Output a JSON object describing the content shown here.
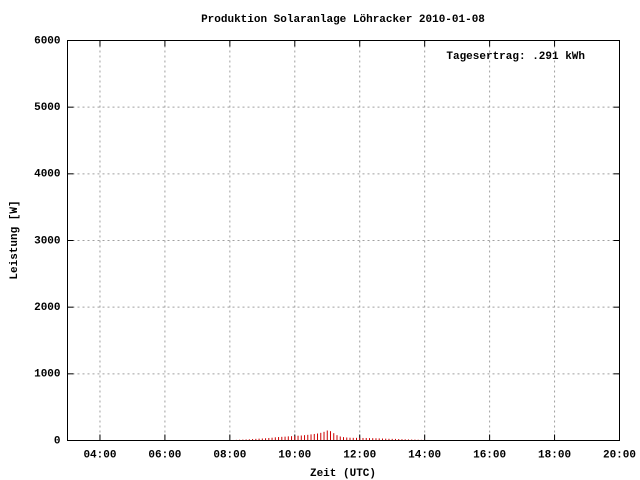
{
  "chart_data": {
    "type": "impulse",
    "title": "Produktion Solaranlage Löhracker 2010-01-08",
    "annotation": "Tagesertrag: .291 kWh",
    "x_label": "Zeit (UTC)",
    "y_label": "Leistung [W]",
    "color": "#cc0000",
    "grid": true,
    "xlim": [
      3,
      20
    ],
    "xticks": [
      {
        "value": 4,
        "label": "04:00"
      },
      {
        "value": 6,
        "label": "06:00"
      },
      {
        "value": 8,
        "label": "08:00"
      },
      {
        "value": 10,
        "label": "10:00"
      },
      {
        "value": 12,
        "label": "12:00"
      },
      {
        "value": 14,
        "label": "14:00"
      },
      {
        "value": 16,
        "label": "16:00"
      },
      {
        "value": 18,
        "label": "18:00"
      },
      {
        "value": 20,
        "label": "20:00"
      }
    ],
    "ylim": [
      0,
      6000
    ],
    "yticks": [
      0,
      1000,
      2000,
      3000,
      4000,
      5000,
      6000
    ],
    "x": [
      8.0,
      8.1,
      8.2,
      8.3,
      8.4,
      8.5,
      8.6,
      8.7,
      8.8,
      8.9,
      9.0,
      9.1,
      9.2,
      9.3,
      9.4,
      9.5,
      9.6,
      9.7,
      9.8,
      9.9,
      10.0,
      10.1,
      10.2,
      10.3,
      10.4,
      10.5,
      10.6,
      10.7,
      10.8,
      10.9,
      11.0,
      11.1,
      11.2,
      11.3,
      11.4,
      11.5,
      11.6,
      11.7,
      11.8,
      11.9,
      12.0,
      12.1,
      12.2,
      12.3,
      12.4,
      12.5,
      12.6,
      12.7,
      12.8,
      12.9,
      13.0,
      13.1,
      13.2,
      13.3,
      13.4,
      13.5,
      13.6,
      13.7,
      13.8,
      13.9,
      14.0,
      14.1,
      14.2,
      14.3,
      14.4,
      14.5,
      14.6,
      14.7,
      14.8,
      14.9,
      15.0
    ],
    "values": [
      5,
      8,
      10,
      12,
      14,
      16,
      18,
      22,
      25,
      28,
      30,
      34,
      38,
      42,
      48,
      52,
      55,
      58,
      62,
      65,
      68,
      72,
      75,
      80,
      85,
      92,
      98,
      105,
      115,
      130,
      150,
      140,
      110,
      80,
      60,
      50,
      45,
      42,
      40,
      40,
      40,
      38,
      38,
      36,
      35,
      34,
      32,
      30,
      28,
      26,
      25,
      24,
      22,
      20,
      18,
      16,
      15,
      14,
      12,
      10,
      9,
      8,
      7,
      6,
      5,
      5,
      4,
      4,
      3,
      3,
      2
    ]
  }
}
